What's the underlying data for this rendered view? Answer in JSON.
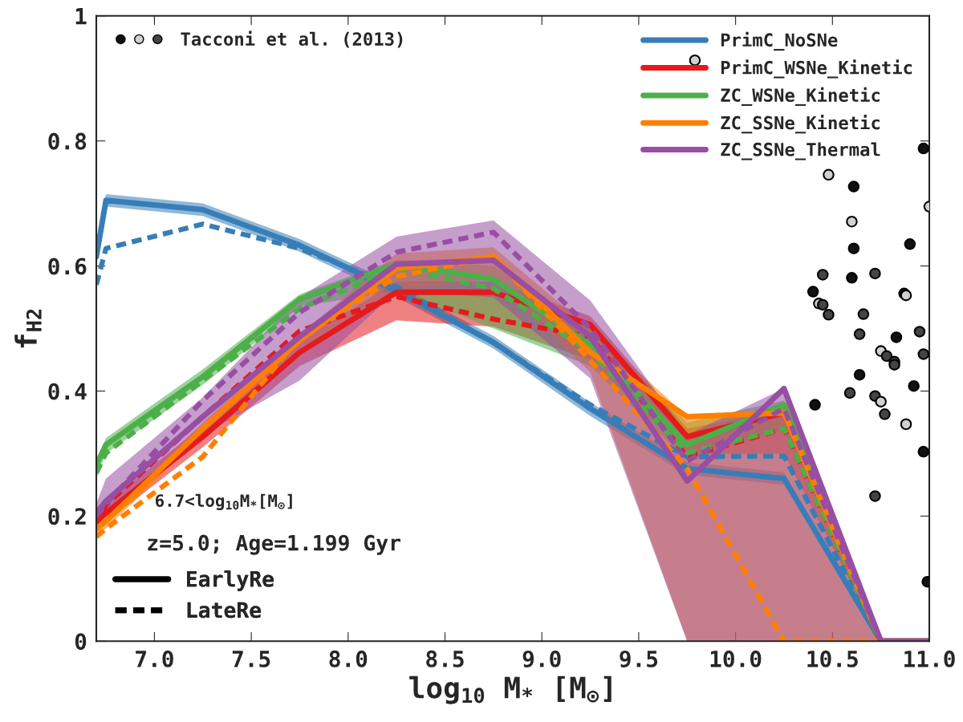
{
  "chart_data": {
    "type": "line",
    "xlabel": "log$_{10}$ M$_{*}$ [M$_{⊙}$]",
    "ylabel": "f$_{H2}$",
    "x": [
      6.7,
      6.75,
      7.25,
      7.75,
      8.25,
      8.75,
      9.25,
      9.75,
      10.25,
      10.75,
      11.0
    ],
    "xlim": [
      6.7,
      11.0
    ],
    "ylim": [
      0,
      1
    ],
    "xticks": [
      {
        "value": 7.0,
        "label": "7.0"
      },
      {
        "value": 7.5,
        "label": "7.5"
      },
      {
        "value": 8.0,
        "label": "8.0"
      },
      {
        "value": 8.5,
        "label": "8.5"
      },
      {
        "value": 9.0,
        "label": "9.0"
      },
      {
        "value": 9.5,
        "label": "9.5"
      },
      {
        "value": 10.0,
        "label": "10.0"
      },
      {
        "value": 10.5,
        "label": "10.5"
      },
      {
        "value": 11.0,
        "label": "11.0"
      }
    ],
    "yticks": [
      0,
      0.2,
      0.4,
      0.6,
      0.8,
      1
    ],
    "grid": false,
    "legend": "top right",
    "annotations": [
      "6.7<log$_{10}$M$_{*}$[M$_{⊙}$]",
      "z=5.0; Age=1.199 Gyr",
      "EarlyRe",
      "LateRe"
    ],
    "series": [
      {
        "name": "PrimC_NoSNe",
        "color": "#377eb8",
        "line_style": "solid",
        "values": [
          0.615,
          0.705,
          0.69,
          0.633,
          0.56,
          0.478,
          0.372,
          0.276,
          0.26,
          0,
          0
        ],
        "lower": [
          0.605,
          0.695,
          0.68,
          0.623,
          0.55,
          0.468,
          0.36,
          0.266,
          0.25,
          0,
          0
        ],
        "upper": [
          0.625,
          0.715,
          0.7,
          0.643,
          0.57,
          0.488,
          0.382,
          0.286,
          0.27,
          0,
          0
        ]
      },
      {
        "color": "#377eb8",
        "line_style": "dashed",
        "values": [
          0.57,
          0.628,
          0.667,
          0.628,
          0.567,
          0.477,
          0.378,
          0.295,
          0.296,
          0,
          0
        ]
      },
      {
        "name": "PrimC_WSNe_Kinetic",
        "color": "#e41a1c",
        "line_style": "solid",
        "values": [
          0.192,
          0.205,
          0.327,
          0.462,
          0.558,
          0.558,
          0.506,
          0.327,
          0.365,
          0,
          0
        ],
        "lower": [
          0.18,
          0.19,
          0.31,
          0.44,
          0.513,
          0.503,
          0.45,
          0.3,
          0.3,
          0,
          0
        ],
        "upper": [
          0.2,
          0.22,
          0.345,
          0.48,
          0.575,
          0.575,
          0.52,
          0.34,
          0.37,
          0,
          0
        ]
      },
      {
        "color": "#e41a1c",
        "line_style": "dashed",
        "values": [
          0.186,
          0.218,
          0.359,
          0.496,
          0.551,
          0.515,
          0.487,
          0.295,
          0.34,
          0,
          0
        ]
      },
      {
        "name": "ZC_WSNe_Kinetic",
        "color": "#4daf4a",
        "line_style": "solid",
        "values": [
          0.282,
          0.314,
          0.423,
          0.547,
          0.603,
          0.579,
          0.474,
          0.314,
          0.378,
          0,
          0
        ],
        "lower": [
          0.26,
          0.3,
          0.41,
          0.535,
          0.56,
          0.5,
          0.44,
          0.29,
          0.34,
          0,
          0
        ],
        "upper": [
          0.29,
          0.325,
          0.435,
          0.555,
          0.61,
          0.6,
          0.5,
          0.35,
          0.385,
          0,
          0
        ]
      },
      {
        "color": "#4daf4a",
        "line_style": "dashed",
        "values": [
          0.269,
          0.301,
          0.417,
          0.532,
          0.596,
          0.564,
          0.462,
          0.301,
          0.34,
          0,
          0
        ]
      },
      {
        "name": "ZC_SSNe_Kinetic",
        "color": "#ff7f00",
        "line_style": "solid",
        "values": [
          0.18,
          0.192,
          0.34,
          0.481,
          0.596,
          0.615,
          0.462,
          0.359,
          0.365,
          0,
          0
        ],
        "lower": [
          0.17,
          0.18,
          0.33,
          0.47,
          0.56,
          0.58,
          0.43,
          0,
          0,
          0,
          0
        ],
        "upper": [
          0.19,
          0.2,
          0.35,
          0.49,
          0.62,
          0.63,
          0.5,
          0.36,
          0.37,
          0,
          0
        ]
      },
      {
        "color": "#ff7f00",
        "line_style": "dashed",
        "values": [
          0.167,
          0.18,
          0.295,
          0.487,
          0.583,
          0.615,
          0.449,
          0.276,
          0,
          0,
          0
        ]
      },
      {
        "name": "ZC_SSNe_Thermal",
        "color": "#984ea3",
        "line_style": "solid",
        "values": [
          0.205,
          0.224,
          0.359,
          0.487,
          0.603,
          0.609,
          0.487,
          0.256,
          0.404,
          0,
          0
        ],
        "lower": [
          0.19,
          0.2,
          0.33,
          0.417,
          0.56,
          0.55,
          0.42,
          0,
          0,
          0,
          0
        ],
        "upper": [
          0.22,
          0.26,
          0.39,
          0.55,
          0.647,
          0.673,
          0.545,
          0.33,
          0.404,
          0,
          0
        ]
      },
      {
        "color": "#984ea3",
        "line_style": "dashed",
        "values": [
          0.2,
          0.22,
          0.385,
          0.526,
          0.622,
          0.654,
          0.5,
          0.288,
          0.372,
          0,
          0
        ]
      },
      {
        "type": "scatter",
        "name": "Tacconi et al. (2013)",
        "marker": "circle",
        "x": [
          10.97,
          10.48,
          10.61,
          10.6,
          11.0,
          10.61,
          10.9,
          10.45,
          10.6,
          10.72,
          10.4,
          10.43,
          10.45,
          10.48,
          10.66,
          10.87,
          10.88,
          10.64,
          10.83,
          10.95,
          10.75,
          10.78,
          10.82,
          10.82,
          10.97,
          10.64,
          10.92,
          10.59,
          10.72,
          10.75,
          10.77,
          10.41,
          10.88,
          10.97,
          10.72,
          10.99,
          9.79
        ],
        "values": [
          0.788,
          0.746,
          0.727,
          0.671,
          0.695,
          0.628,
          0.635,
          0.586,
          0.581,
          0.588,
          0.559,
          0.54,
          0.538,
          0.522,
          0.523,
          0.556,
          0.553,
          0.491,
          0.486,
          0.495,
          0.464,
          0.456,
          0.447,
          0.442,
          0.459,
          0.426,
          0.408,
          0.397,
          0.392,
          0.383,
          0.363,
          0.378,
          0.347,
          0.303,
          0.232,
          0.095,
          0.929
        ],
        "colors": [
          "#111111",
          "#d0d0d0",
          "#111111",
          "#d0d0d0",
          "#d0d0d0",
          "#111111",
          "#111111",
          "#444444",
          "#111111",
          "#444444",
          "#111111",
          "#d0d0d0",
          "#444444",
          "#444444",
          "#444444",
          "#111111",
          "#d0d0d0",
          "#444444",
          "#111111",
          "#444444",
          "#d0d0d0",
          "#444444",
          "#444444",
          "#444444",
          "#444444",
          "#111111",
          "#111111",
          "#444444",
          "#444444",
          "#d0d0d0",
          "#444444",
          "#111111",
          "#d0d0d0",
          "#111111",
          "#444444",
          "#111111",
          "#d0d0d0"
        ]
      }
    ]
  }
}
